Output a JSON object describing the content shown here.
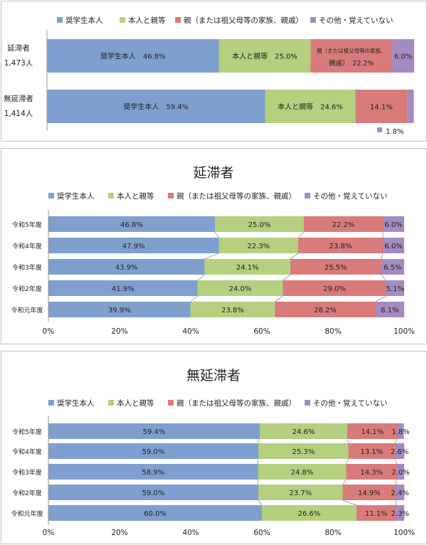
{
  "colors": {
    "self": "#7f9fcf",
    "self_and_parents": "#b5d07e",
    "parents": "#d97b7b",
    "other": "#a48bc2"
  },
  "legend": [
    "奨学生本人",
    "本人と親等",
    "親（または祖父母等の家族、親戚）",
    "その他・覚えていない"
  ],
  "legend_short_parent": [
    "親（または祖父母等の家族、",
    "親戚）"
  ],
  "chart_data": [
    {
      "type": "bar",
      "orientation": "horizontal",
      "stacked": "percent",
      "title": "",
      "categories": [
        "延滞者",
        "無延滞者"
      ],
      "category_counts": [
        "1,473人",
        "1,414人"
      ],
      "series": [
        {
          "name": "奨学生本人",
          "values": [
            46.8,
            59.4
          ]
        },
        {
          "name": "本人と親等",
          "values": [
            25.0,
            24.6
          ]
        },
        {
          "name": "親（または祖父母等の家族、親戚）",
          "values": [
            22.2,
            14.1
          ]
        },
        {
          "name": "その他・覚えていない",
          "values": [
            6.0,
            1.8
          ]
        }
      ],
      "xlim": [
        0,
        100
      ]
    },
    {
      "type": "bar",
      "orientation": "horizontal",
      "stacked": "percent",
      "title": "延滞者",
      "categories": [
        "令和5年度",
        "令和4年度",
        "令和3年度",
        "令和2年度",
        "令和元年度"
      ],
      "series": [
        {
          "name": "奨学生本人",
          "values": [
            46.8,
            47.9,
            43.9,
            41.9,
            39.9
          ]
        },
        {
          "name": "本人と親等",
          "values": [
            25.0,
            22.3,
            24.1,
            24.0,
            23.8
          ]
        },
        {
          "name": "親（または祖父母等の家族、親戚）",
          "values": [
            22.2,
            23.8,
            25.5,
            29.0,
            28.2
          ]
        },
        {
          "name": "その他・覚えていない",
          "values": [
            6.0,
            6.0,
            6.5,
            5.1,
            8.1
          ]
        }
      ],
      "xticks": [
        "0%",
        "20%",
        "40%",
        "60%",
        "80%",
        "100%"
      ],
      "xlim": [
        0,
        100
      ]
    },
    {
      "type": "bar",
      "orientation": "horizontal",
      "stacked": "percent",
      "title": "無延滞者",
      "categories": [
        "令和5年度",
        "令和4年度",
        "令和3年度",
        "令和2年度",
        "令和元年度"
      ],
      "series": [
        {
          "name": "奨学生本人",
          "values": [
            59.4,
            59.0,
            58.9,
            59.0,
            60.0
          ]
        },
        {
          "name": "本人と親等",
          "values": [
            24.6,
            25.3,
            24.8,
            23.7,
            26.6
          ]
        },
        {
          "name": "親（または祖父母等の家族、親戚）",
          "values": [
            14.1,
            13.1,
            14.3,
            14.9,
            11.1
          ]
        },
        {
          "name": "その他・覚えていない",
          "values": [
            1.8,
            2.6,
            2.0,
            2.4,
            2.3
          ]
        }
      ],
      "xticks": [
        "0%",
        "20%",
        "40%",
        "60%",
        "80%",
        "100%"
      ],
      "xlim": [
        0,
        100
      ]
    }
  ]
}
